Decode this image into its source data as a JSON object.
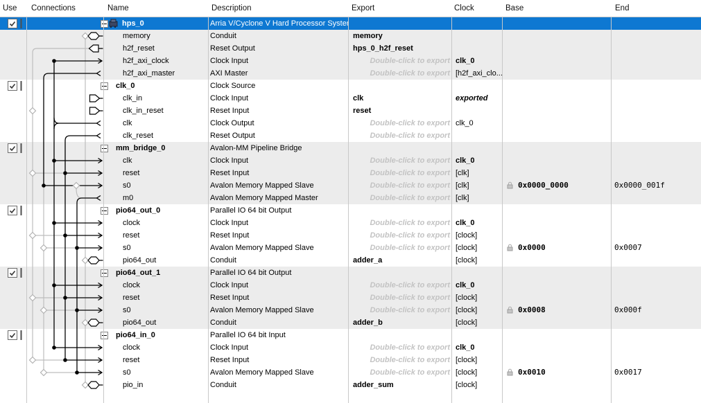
{
  "header": {
    "columns": [
      "Use",
      "Connections",
      "Name",
      "Description",
      "Export",
      "Clock",
      "Base",
      "End"
    ]
  },
  "strings": {
    "export_hint": "Double-click to export"
  },
  "colors": {
    "selection_blue": "#0e78d2",
    "band_gray": "#ececec",
    "hint_gray": "#c3c3c3",
    "grid_line": "#c8c8c8"
  },
  "rows": [
    {
      "name": "hps_0",
      "group": true,
      "icon": true,
      "selected": true,
      "checkbox": true,
      "description": "Arria V/Cyclone V Hard Processor System"
    },
    {
      "name": "memory",
      "description": "Conduit",
      "export": "memory"
    },
    {
      "name": "h2f_reset",
      "description": "Reset Output",
      "export": "hps_0_h2f_reset"
    },
    {
      "name": "h2f_axi_clock",
      "description": "Clock Input",
      "hint": true,
      "clock": "clk_0",
      "clock_style": "b"
    },
    {
      "name": "h2f_axi_master",
      "description": "AXI Master",
      "hint": true,
      "clock": "[h2f_axi_clo..."
    },
    {
      "name": "clk_0",
      "group": true,
      "checkbox": true,
      "description": "Clock Source"
    },
    {
      "name": "clk_in",
      "description": "Clock Input",
      "export": "clk",
      "clock": "exported",
      "clock_style": "i"
    },
    {
      "name": "clk_in_reset",
      "description": "Reset Input",
      "export": "reset"
    },
    {
      "name": "clk",
      "description": "Clock Output",
      "hint": true,
      "clock": "clk_0"
    },
    {
      "name": "clk_reset",
      "description": "Reset Output",
      "hint": true
    },
    {
      "name": "mm_bridge_0",
      "group": true,
      "checkbox": true,
      "description": "Avalon-MM Pipeline Bridge"
    },
    {
      "name": "clk",
      "description": "Clock Input",
      "hint": true,
      "clock": "clk_0",
      "clock_style": "b"
    },
    {
      "name": "reset",
      "description": "Reset Input",
      "hint": true,
      "clock": "[clk]"
    },
    {
      "name": "s0",
      "description": "Avalon Memory Mapped Slave",
      "hint": true,
      "clock": "[clk]",
      "base": "0x0000_0000",
      "end": "0x0000_001f"
    },
    {
      "name": "m0",
      "description": "Avalon Memory Mapped Master",
      "hint": true,
      "clock": "[clk]"
    },
    {
      "name": "pio64_out_0",
      "group": true,
      "checkbox": true,
      "description": "Parallel IO 64 bit Output"
    },
    {
      "name": "clock",
      "description": "Clock Input",
      "hint": true,
      "clock": "clk_0",
      "clock_style": "b"
    },
    {
      "name": "reset",
      "description": "Reset Input",
      "hint": true,
      "clock": "[clock]"
    },
    {
      "name": "s0",
      "description": "Avalon Memory Mapped Slave",
      "hint": true,
      "clock": "[clock]",
      "base": "0x0000",
      "end": "0x0007"
    },
    {
      "name": "pio64_out",
      "description": "Conduit",
      "export": "adder_a",
      "clock": "[clock]"
    },
    {
      "name": "pio64_out_1",
      "group": true,
      "checkbox": true,
      "description": "Parallel IO 64 bit Output"
    },
    {
      "name": "clock",
      "description": "Clock Input",
      "hint": true,
      "clock": "clk_0",
      "clock_style": "b"
    },
    {
      "name": "reset",
      "description": "Reset Input",
      "hint": true,
      "clock": "[clock]"
    },
    {
      "name": "s0",
      "description": "Avalon Memory Mapped Slave",
      "hint": true,
      "clock": "[clock]",
      "base": "0x0008",
      "end": "0x000f"
    },
    {
      "name": "pio64_out",
      "description": "Conduit",
      "export": "adder_b",
      "clock": "[clock]"
    },
    {
      "name": "pio64_in_0",
      "group": true,
      "checkbox": true,
      "description": "Parallel IO 64 bit Input"
    },
    {
      "name": "clock",
      "description": "Clock Input",
      "hint": true,
      "clock": "clk_0",
      "clock_style": "b"
    },
    {
      "name": "reset",
      "description": "Reset Input",
      "hint": true,
      "clock": "[clock]"
    },
    {
      "name": "s0",
      "description": "Avalon Memory Mapped Slave",
      "hint": true,
      "clock": "[clock]",
      "base": "0x0010",
      "end": "0x0017"
    },
    {
      "name": "pio_in",
      "description": "Conduit",
      "export": "adder_sum",
      "clock": "[clock]"
    }
  ],
  "connections": {
    "nets": [
      {
        "from": "clk_0.clk",
        "to": [
          "hps_0.h2f_axi_clock",
          "mm_bridge_0.clk",
          "pio64_out_0.clock",
          "pio64_out_1.clock",
          "pio64_in_0.clock"
        ]
      },
      {
        "from": "clk_0.clk_reset",
        "to": [
          "mm_bridge_0.reset",
          "pio64_out_0.reset",
          "pio64_out_1.reset",
          "pio64_in_0.reset"
        ]
      },
      {
        "from": "hps_0.h2f_axi_master",
        "to": [
          "mm_bridge_0.s0"
        ]
      },
      {
        "from": "mm_bridge_0.m0",
        "to": [
          "pio64_out_0.s0",
          "pio64_out_1.s0",
          "pio64_in_0.s0"
        ]
      }
    ]
  }
}
